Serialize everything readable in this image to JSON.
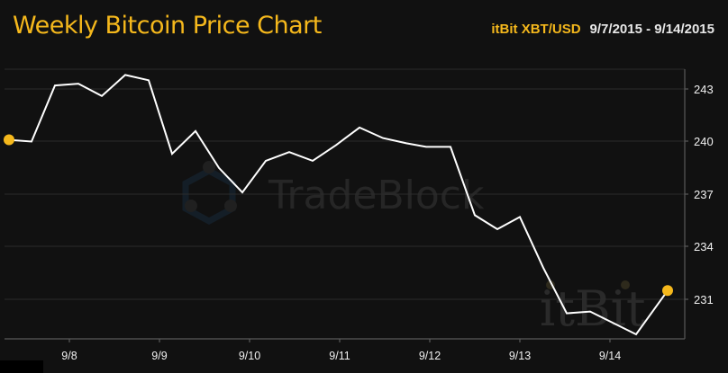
{
  "header": {
    "title": "Weekly Bitcoin Price Chart",
    "source": "itBit XBT/USD",
    "date_range": "9/7/2015 - 9/14/2015"
  },
  "watermarks": {
    "primary": "TradeBlock",
    "secondary": "itBit"
  },
  "colors": {
    "background": "#111111",
    "accent": "#f5b81c",
    "line": "#ffffff",
    "grid": "#2c2c2c",
    "axis": "#555555"
  },
  "chart_data": {
    "type": "line",
    "title": "Weekly Bitcoin Price Chart",
    "subtitle": "itBit XBT/USD 9/7/2015 - 9/14/2015",
    "xlabel": "",
    "ylabel": "",
    "x_ticks": [
      "9/8",
      "9/9",
      "9/10",
      "9/11",
      "9/12",
      "9/13",
      "9/14"
    ],
    "y_ticks": [
      231,
      234,
      237,
      240,
      243
    ],
    "ylim": [
      229.0,
      244.2
    ],
    "grid": true,
    "y_axis_position": "right",
    "legend": null,
    "series": [
      {
        "name": "itBit XBT/USD",
        "x": [
          "9/7 06:00",
          "9/7 12:00",
          "9/7 18:00",
          "9/8 00:00",
          "9/8 06:00",
          "9/8 12:00",
          "9/8 18:00",
          "9/9 00:00",
          "9/9 06:00",
          "9/9 12:00",
          "9/9 18:00",
          "9/10 00:00",
          "9/10 06:00",
          "9/10 12:00",
          "9/10 18:00",
          "9/11 00:00",
          "9/11 06:00",
          "9/11 12:00",
          "9/11 18:00",
          "9/12 00:00",
          "9/12 06:00",
          "9/12 12:00",
          "9/12 18:00",
          "9/13 00:00",
          "9/13 06:00",
          "9/13 12:00",
          "9/14 00:00",
          "9/14 08:00"
        ],
        "values": [
          240.1,
          240.0,
          243.2,
          243.3,
          242.6,
          243.8,
          243.5,
          239.3,
          240.6,
          238.5,
          237.1,
          238.9,
          239.4,
          238.9,
          239.8,
          240.8,
          240.2,
          239.9,
          239.7,
          239.7,
          235.8,
          235.0,
          235.7,
          232.8,
          230.2,
          230.3,
          229.0,
          231.5
        ]
      }
    ],
    "markers": [
      {
        "label": "start",
        "value": 240.1,
        "color": "#f5b81c"
      },
      {
        "label": "end",
        "value": 231.5,
        "color": "#f5b81c"
      }
    ]
  }
}
